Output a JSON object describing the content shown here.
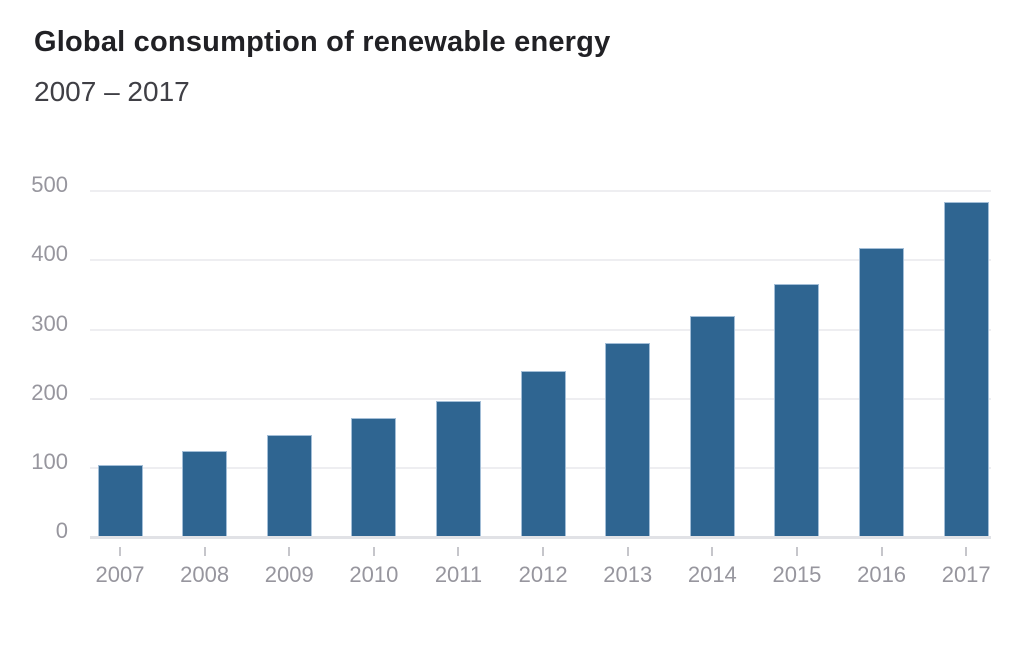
{
  "page": {
    "background": "#ffffff"
  },
  "chart_data": {
    "type": "bar",
    "title": "Global consumption of renewable energy",
    "subtitle": "2007 – 2017",
    "categories": [
      "2007",
      "2008",
      "2009",
      "2010",
      "2011",
      "2012",
      "2013",
      "2014",
      "2015",
      "2016",
      "2017"
    ],
    "values": [
      104,
      125,
      148,
      172,
      197,
      240,
      281,
      320,
      366,
      418,
      485
    ],
    "xlabel": "",
    "ylabel": "",
    "ylim": [
      0,
      500
    ],
    "yticks": [
      0,
      100,
      200,
      300,
      400,
      500
    ],
    "grid": true,
    "legend": false,
    "colors": {
      "bar": "#2f6591",
      "bar_edge": "#a3bed7",
      "title_text": "#212125",
      "subtitle_text": "#3f3f45",
      "axis_label": "#97969e",
      "gridline": "#eeeef1",
      "axis_line": "#e1e2e6",
      "tick": "#c6c6cb"
    }
  }
}
